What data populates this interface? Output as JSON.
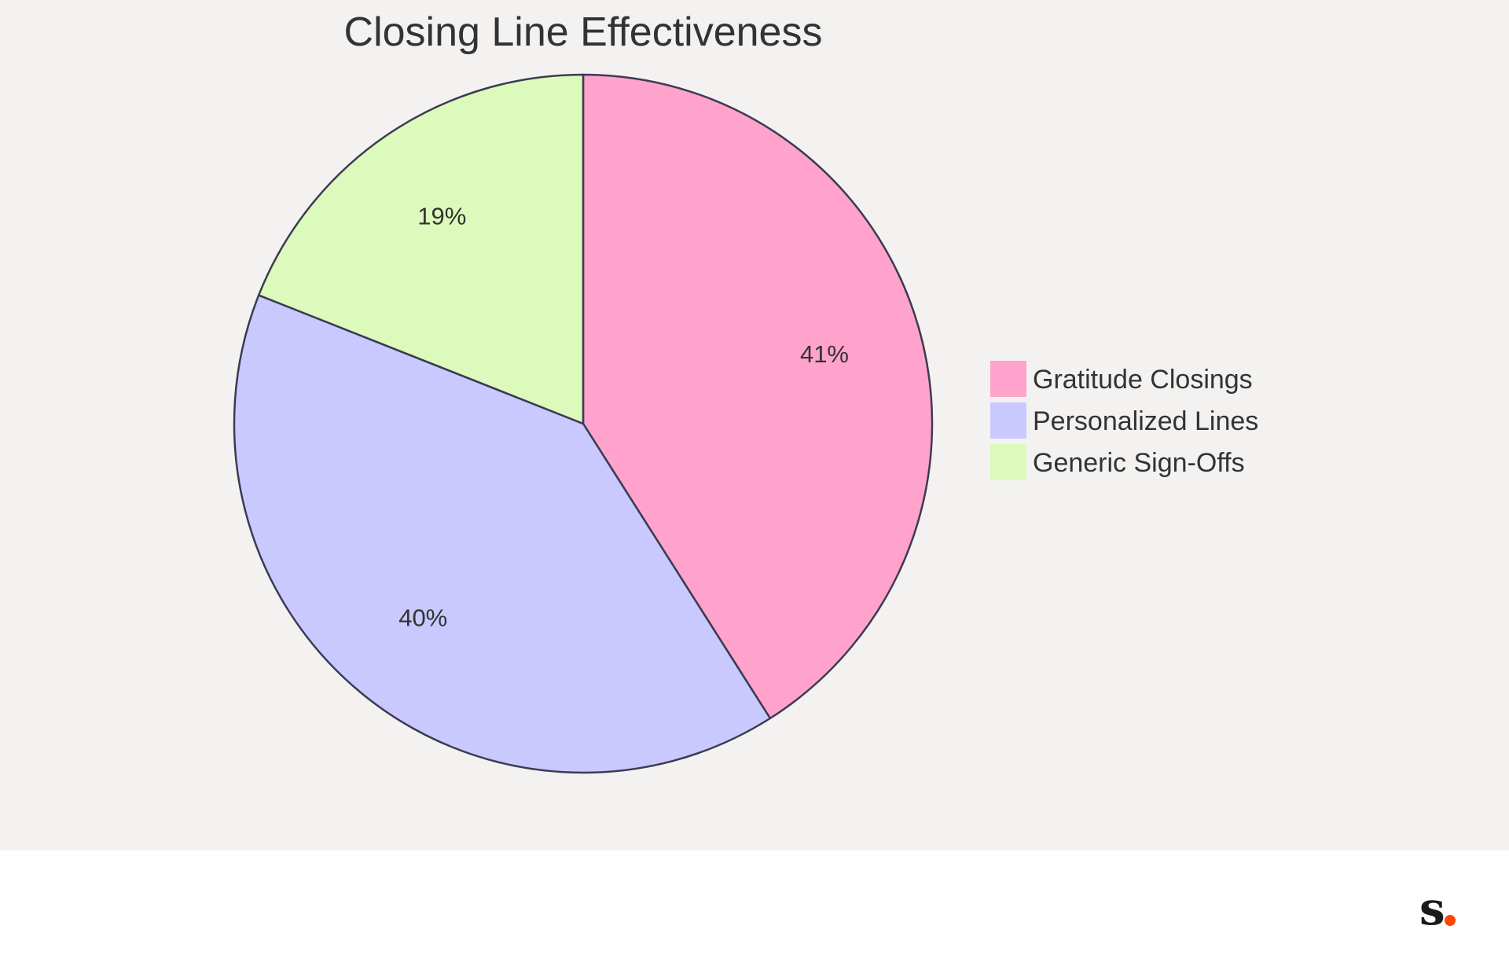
{
  "chart_data": {
    "type": "pie",
    "title": "Closing Line Effectiveness",
    "categories": [
      "Gratitude Closings",
      "Personalized Lines",
      "Generic Sign-Offs"
    ],
    "values": [
      41,
      40,
      19
    ],
    "labels": [
      "41%",
      "40%",
      "19%"
    ],
    "colors": [
      "#ffa3cc",
      "#c9c9ff",
      "#dcfabb"
    ],
    "stroke_color": "#3b3b52",
    "legend_position": "right",
    "start_angle": "12 o'clock",
    "direction": "clockwise"
  },
  "logo": {
    "letter": "s",
    "dot_color": "#ff4500"
  }
}
